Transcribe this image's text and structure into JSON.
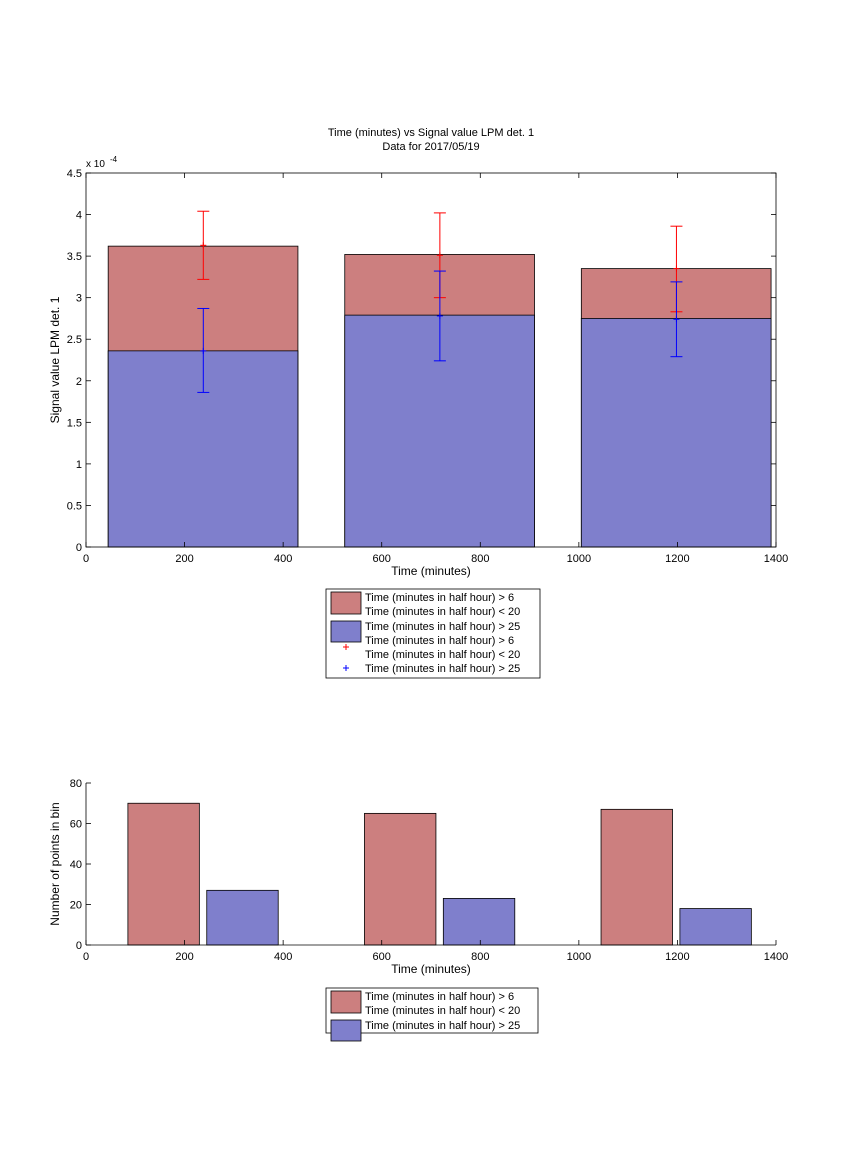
{
  "chart_data": [
    {
      "type": "bar",
      "title": "Time (minutes) vs Signal value LPM det. 1",
      "subtitle": "Data for 2017/05/19",
      "xlabel": "Time (minutes)",
      "ylabel": "Signal value LPM det. 1",
      "exponent_label": "x 10",
      "exponent_power": "-4",
      "xlim": [
        0,
        1400
      ],
      "ylim": [
        0,
        4.5
      ],
      "x_ticks": [
        "0",
        "200",
        "400",
        "600",
        "800",
        "1000",
        "1200",
        "1400"
      ],
      "y_ticks": [
        "0",
        "0.5",
        "1",
        "1.5",
        "2",
        "2.5",
        "3",
        "3.5",
        "4",
        "4.5"
      ],
      "grid": false,
      "legend_placement": "below",
      "bars": [
        {
          "series": 0,
          "x_start": 45,
          "x_end": 430,
          "value": 3.62
        },
        {
          "series": 0,
          "x_start": 525,
          "x_end": 910,
          "value": 3.52
        },
        {
          "series": 0,
          "x_start": 1005,
          "x_end": 1390,
          "value": 3.35
        },
        {
          "series": 1,
          "x_start": 45,
          "x_end": 430,
          "value": 2.36
        },
        {
          "series": 1,
          "x_start": 525,
          "x_end": 910,
          "value": 2.79
        },
        {
          "series": 1,
          "x_start": 1005,
          "x_end": 1390,
          "value": 2.75
        }
      ],
      "error_bars": [
        {
          "series": 0,
          "x": 238,
          "y": 3.63,
          "lower": 3.22,
          "upper": 4.04
        },
        {
          "series": 0,
          "x": 718,
          "y": 3.51,
          "lower": 3.0,
          "upper": 4.02
        },
        {
          "series": 0,
          "x": 1198,
          "y": 3.35,
          "lower": 2.83,
          "upper": 3.86
        },
        {
          "series": 1,
          "x": 238,
          "y": 2.36,
          "lower": 1.86,
          "upper": 2.87
        },
        {
          "series": 1,
          "x": 718,
          "y": 2.78,
          "lower": 2.24,
          "upper": 3.32
        },
        {
          "series": 1,
          "x": 1198,
          "y": 2.74,
          "lower": 2.29,
          "upper": 3.19
        }
      ],
      "series": [
        {
          "name": "Time (minutes in half hour) > 6\nTime (minutes in half hour) < 20",
          "color": "#cc7f7f",
          "err_color": "#ff0000"
        },
        {
          "name": "Time (minutes in half hour) > 25",
          "color": "#7f7fcc",
          "err_color": "#0000ff"
        }
      ],
      "legend": [
        {
          "kind": "patch",
          "series": 0,
          "lines": [
            "Time (minutes in half hour) > 6",
            "Time (minutes in half hour) < 20"
          ]
        },
        {
          "kind": "patch",
          "series": 1,
          "lines": [
            "Time (minutes in half hour) > 25"
          ]
        },
        {
          "kind": "marker",
          "series": 0,
          "lines": [
            "Time (minutes in half hour) > 6",
            "Time (minutes in half hour) < 20"
          ]
        },
        {
          "kind": "marker",
          "series": 1,
          "lines": [
            "Time (minutes in half hour) > 25"
          ]
        }
      ]
    },
    {
      "type": "bar",
      "title": "",
      "xlabel": "Time (minutes)",
      "ylabel": "Number of points in bin",
      "xlim": [
        0,
        1400
      ],
      "ylim": [
        0,
        80
      ],
      "x_ticks": [
        "0",
        "200",
        "400",
        "600",
        "800",
        "1000",
        "1200",
        "1400"
      ],
      "y_ticks": [
        "0",
        "20",
        "40",
        "60",
        "80"
      ],
      "grid": false,
      "legend_placement": "below",
      "bars": [
        {
          "series": 0,
          "x_start": 85,
          "x_end": 230,
          "value": 70
        },
        {
          "series": 1,
          "x_start": 245,
          "x_end": 390,
          "value": 27
        },
        {
          "series": 0,
          "x_start": 565,
          "x_end": 710,
          "value": 65
        },
        {
          "series": 1,
          "x_start": 725,
          "x_end": 870,
          "value": 23
        },
        {
          "series": 0,
          "x_start": 1045,
          "x_end": 1190,
          "value": 67
        },
        {
          "series": 1,
          "x_start": 1205,
          "x_end": 1350,
          "value": 18
        }
      ],
      "series": [
        {
          "name": "Time (minutes in half hour) > 6\nTime (minutes in half hour) < 20",
          "color": "#cc7f7f"
        },
        {
          "name": "Time (minutes in half hour) > 25",
          "color": "#7f7fcc"
        }
      ],
      "legend": [
        {
          "kind": "patch",
          "series": 0,
          "lines": [
            "Time (minutes in half hour) > 6",
            "Time (minutes in half hour) < 20"
          ]
        },
        {
          "kind": "patch",
          "series": 1,
          "lines": [
            "Time (minutes in half hour) > 25"
          ]
        }
      ]
    }
  ]
}
